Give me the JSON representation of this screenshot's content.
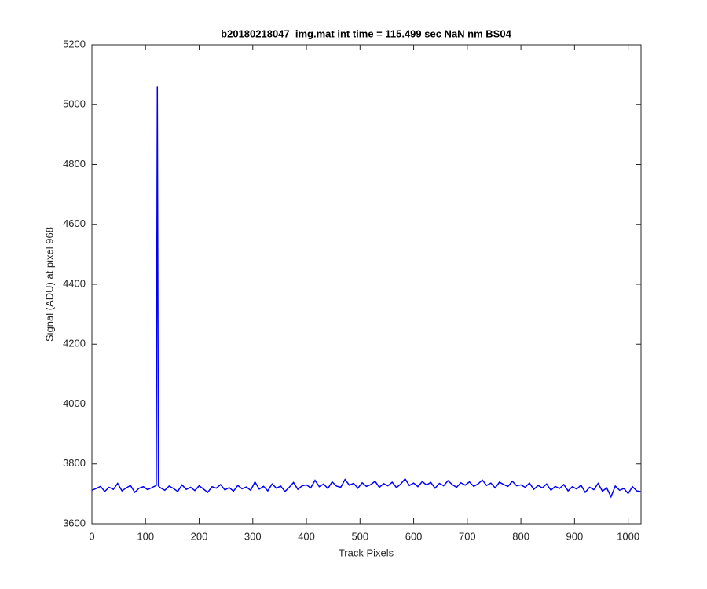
{
  "chart_data": {
    "type": "line",
    "title": "b20180218047_img.mat int time = 115.499 sec  NaN nm BS04",
    "x_label": "Track Pixels",
    "y_label": "Signal (ADU) at pixel 968",
    "x": [
      0,
      8,
      16,
      24,
      32,
      40,
      48,
      56,
      64,
      72,
      80,
      88,
      96,
      104,
      112,
      120,
      122,
      124,
      128,
      136,
      144,
      152,
      160,
      168,
      176,
      184,
      192,
      200,
      208,
      216,
      224,
      232,
      240,
      248,
      256,
      264,
      272,
      280,
      288,
      296,
      304,
      312,
      320,
      328,
      336,
      344,
      352,
      360,
      368,
      376,
      384,
      392,
      400,
      408,
      416,
      424,
      432,
      440,
      448,
      456,
      464,
      472,
      480,
      488,
      496,
      504,
      512,
      520,
      528,
      536,
      544,
      552,
      560,
      568,
      576,
      584,
      592,
      600,
      608,
      616,
      624,
      632,
      640,
      648,
      656,
      664,
      672,
      680,
      688,
      696,
      704,
      712,
      720,
      728,
      736,
      744,
      752,
      760,
      768,
      776,
      784,
      792,
      800,
      808,
      816,
      824,
      832,
      840,
      848,
      856,
      864,
      872,
      880,
      888,
      896,
      904,
      912,
      920,
      928,
      936,
      944,
      952,
      960,
      968,
      976,
      984,
      992,
      1000,
      1008,
      1016,
      1023
    ],
    "series": [
      {
        "name": "signal",
        "color": "#0000ff",
        "values": [
          3712,
          3718,
          3725,
          3708,
          3722,
          3715,
          3735,
          3710,
          3720,
          3728,
          3705,
          3719,
          3724,
          3714,
          3721,
          3728,
          5060,
          3726,
          3720,
          3712,
          3726,
          3718,
          3708,
          3730,
          3715,
          3722,
          3711,
          3727,
          3716,
          3705,
          3724,
          3719,
          3731,
          3713,
          3721,
          3709,
          3728,
          3717,
          3723,
          3712,
          3740,
          3716,
          3725,
          3710,
          3733,
          3719,
          3726,
          3708,
          3722,
          3738,
          3715,
          3727,
          3730,
          3720,
          3745,
          3724,
          3733,
          3718,
          3740,
          3726,
          3722,
          3748,
          3729,
          3735,
          3719,
          3737,
          3725,
          3731,
          3742,
          3722,
          3734,
          3727,
          3739,
          3721,
          3733,
          3750,
          3728,
          3736,
          3724,
          3741,
          3730,
          3738,
          3719,
          3735,
          3727,
          3744,
          3731,
          3722,
          3737,
          3729,
          3740,
          3725,
          3733,
          3746,
          3728,
          3736,
          3720,
          3739,
          3731,
          3725,
          3742,
          3727,
          3730,
          3722,
          3736,
          3715,
          3728,
          3720,
          3733,
          3712,
          3725,
          3718,
          3731,
          3710,
          3724,
          3716,
          3729,
          3705,
          3722,
          3714,
          3735,
          3709,
          3720,
          3690,
          3726,
          3712,
          3718,
          3701,
          3724,
          3710,
          3708
        ]
      }
    ],
    "xlim": [
      0,
      1024
    ],
    "ylim": [
      3600,
      5200
    ],
    "xticks": [
      0,
      100,
      200,
      300,
      400,
      500,
      600,
      700,
      800,
      900,
      1000
    ],
    "yticks": [
      3600,
      3800,
      4000,
      4200,
      4400,
      4600,
      4800,
      5000,
      5200
    ],
    "grid": false
  }
}
